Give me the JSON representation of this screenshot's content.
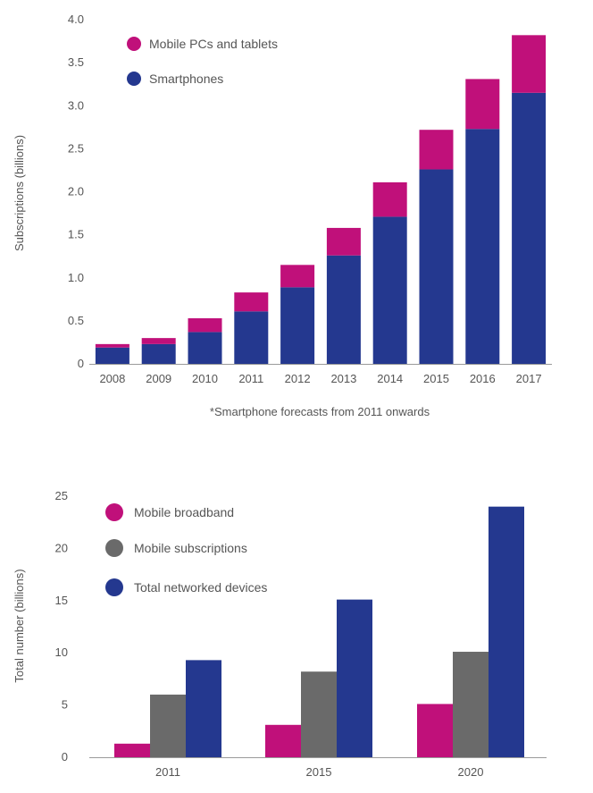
{
  "colors": {
    "magenta": "#c0107a",
    "navy": "#24388f",
    "gray": "#6a6a6a",
    "axis": "#9a9a9a",
    "text": "#555555"
  },
  "chart_data": [
    {
      "type": "bar",
      "stacked": true,
      "title": "",
      "xlabel": "",
      "ylabel": "Subscriptions (billions)",
      "ylim": [
        0,
        4.0
      ],
      "yticks": [
        "0",
        "0.5",
        "1.0",
        "1.5",
        "2.0",
        "2.5",
        "3.0",
        "3.5",
        "4.0"
      ],
      "categories": [
        "2008",
        "2009",
        "2010",
        "2011",
        "2012",
        "2013",
        "2014",
        "2015",
        "2016",
        "2017"
      ],
      "series": [
        {
          "name": "Smartphones",
          "color": "navy",
          "values": [
            0.19,
            0.23,
            0.37,
            0.61,
            0.89,
            1.26,
            1.71,
            2.26,
            2.73,
            3.15
          ]
        },
        {
          "name": "Mobile PCs and tablets",
          "color": "magenta",
          "values": [
            0.04,
            0.07,
            0.16,
            0.22,
            0.26,
            0.32,
            0.4,
            0.46,
            0.58,
            0.67
          ]
        }
      ],
      "legend": [
        {
          "label": "Mobile PCs and tablets",
          "color": "magenta"
        },
        {
          "label": "Smartphones",
          "color": "navy"
        }
      ],
      "legend_placement": "top-left",
      "footnote": "*Smartphone forecasts from 2011 onwards"
    },
    {
      "type": "bar",
      "stacked": false,
      "title": "",
      "xlabel": "",
      "ylabel": "Total number (billions)",
      "ylim": [
        0,
        25
      ],
      "yticks": [
        "0",
        "5",
        "10",
        "15",
        "20",
        "25"
      ],
      "categories": [
        "2011",
        "2015",
        "2020"
      ],
      "series": [
        {
          "name": "Mobile broadband",
          "color": "magenta",
          "values": [
            1.3,
            3.1,
            5.1
          ]
        },
        {
          "name": "Mobile subscriptions",
          "color": "gray",
          "values": [
            6.0,
            8.2,
            10.1
          ]
        },
        {
          "name": "Total networked devices",
          "color": "navy",
          "values": [
            9.3,
            15.1,
            24.0
          ]
        }
      ],
      "legend": [
        {
          "label": "Mobile broadband",
          "color": "magenta"
        },
        {
          "label": "Mobile subscriptions",
          "color": "gray"
        },
        {
          "label": "Total networked devices",
          "color": "navy"
        }
      ],
      "legend_placement": "top-left"
    }
  ]
}
